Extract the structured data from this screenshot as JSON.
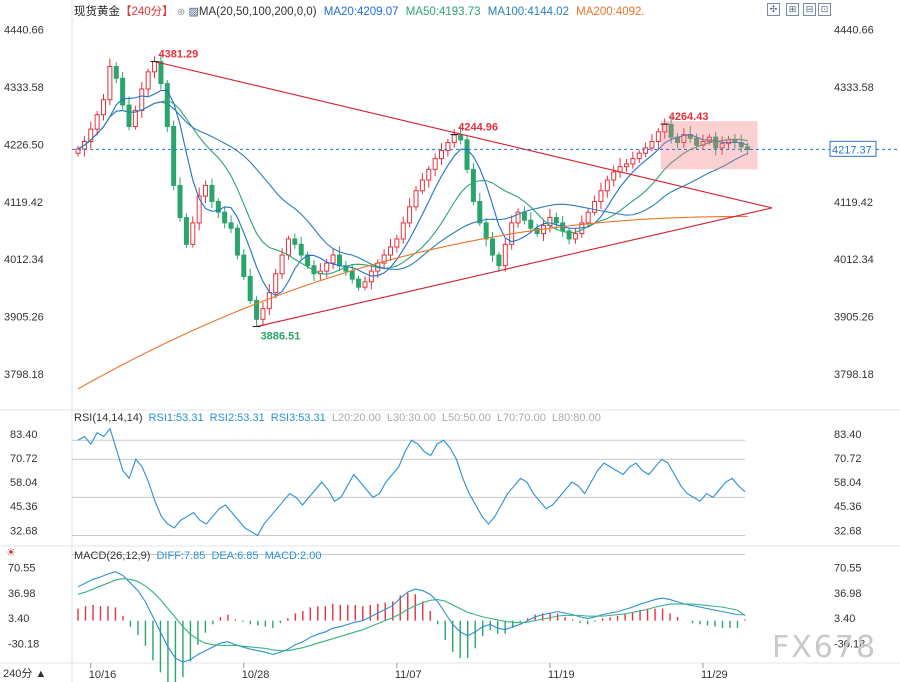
{
  "header": {
    "symbol": "现货黄金",
    "period": "【240分】",
    "ma_label": "MA(20,50,100,200,0,0)",
    "ma20": "MA20:4209.07",
    "ma50": "MA50:4193.73",
    "ma100": "MA100:4144.02",
    "ma200": "MA200:4092."
  },
  "rsi_header": {
    "label": "RSI(14,14,14)",
    "rsi1": "RSI1:53.31",
    "rsi2": "RSI2:53.31",
    "rsi3": "RSI3:53.31",
    "l20": "L20:20.00",
    "l30": "L30:30.00",
    "l50": "L50:50.00",
    "l70": "L70:70.00",
    "l80": "L80:80.00"
  },
  "macd_header": {
    "label": "MACD(26,12,9)",
    "diff": "DIFF:7.85",
    "dea": "DEA:6.85",
    "macd": "MACD:2.00"
  },
  "bottom_badge": "240分 ▲",
  "watermark": "FX678",
  "colors": {
    "up": "#e5313d",
    "down": "#2aa56b",
    "ma20": "#1f6fd1",
    "ma50": "#2fa56e",
    "ma100": "#2a80b9",
    "ma200": "#e8762a",
    "trend": "#d41c2c",
    "rsi": "#2b8fd6",
    "diff": "#2b8fd6",
    "dea": "#36b37e"
  },
  "chart_data": [
    {
      "type": "candlestick",
      "title": "现货黄金 240分",
      "x_ticks": [
        "10/16",
        "10/28",
        "11/07",
        "11/19",
        "11/29"
      ],
      "y_ticks": [
        4440.66,
        4333.58,
        4226.5,
        4119.42,
        4012.34,
        3905.26,
        3798.18
      ],
      "ylim": [
        3740,
        4470
      ],
      "current_price": 4217.37,
      "annotations": [
        {
          "label": "4381.29",
          "value": 4381.29,
          "color": "up"
        },
        {
          "label": "4244.96",
          "value": 4244.96,
          "color": "up"
        },
        {
          "label": "4264.43",
          "value": 4264.43,
          "color": "up"
        },
        {
          "label": "3886.51",
          "value": 3886.51,
          "color": "down"
        }
      ],
      "close_series": [
        4218,
        4232,
        4255,
        4282,
        4310,
        4372,
        4350,
        4300,
        4260,
        4290,
        4330,
        4362,
        4381,
        4340,
        4260,
        4150,
        4090,
        4040,
        4080,
        4130,
        4150,
        4120,
        4100,
        4080,
        4070,
        4020,
        3980,
        3935,
        3900,
        3920,
        3950,
        3985,
        4020,
        4050,
        4040,
        4020,
        4000,
        3985,
        3990,
        4005,
        4020,
        4000,
        3990,
        3975,
        3960,
        3970,
        3990,
        4005,
        4020,
        4035,
        4050,
        4080,
        4110,
        4140,
        4160,
        4180,
        4200,
        4215,
        4230,
        4244,
        4235,
        4180,
        4120,
        4080,
        4050,
        4020,
        4000,
        4040,
        4080,
        4100,
        4085,
        4070,
        4060,
        4075,
        4090,
        4080,
        4065,
        4050,
        4060,
        4080,
        4100,
        4120,
        4140,
        4160,
        4175,
        4185,
        4190,
        4200,
        4210,
        4220,
        4232,
        4250,
        4264,
        4240,
        4230,
        4245,
        4238,
        4225,
        4232,
        4240,
        4220,
        4228,
        4235,
        4230,
        4222,
        4217
      ],
      "moving_averages": [
        {
          "name": "MA20",
          "last": 4209.07
        },
        {
          "name": "MA50",
          "last": 4193.73
        },
        {
          "name": "MA100",
          "last": 4144.02
        },
        {
          "name": "MA200",
          "last": 4092
        }
      ]
    },
    {
      "type": "line",
      "title": "RSI(14,14,14)",
      "y_ticks": [
        83.4,
        70.72,
        58.04,
        45.36,
        32.68
      ],
      "ylim": [
        25,
        88
      ],
      "reference_levels": [
        80,
        70,
        50,
        30,
        20
      ],
      "series": [
        {
          "name": "RSI1",
          "last": 53.31,
          "values": [
            80,
            82,
            78,
            84,
            82,
            86,
            75,
            64,
            60,
            70,
            66,
            58,
            48,
            40,
            36,
            34,
            38,
            40,
            42,
            38,
            36,
            40,
            44,
            46,
            42,
            38,
            34,
            32,
            30,
            36,
            40,
            44,
            48,
            52,
            50,
            46,
            50,
            54,
            58,
            54,
            48,
            50,
            56,
            62,
            58,
            54,
            50,
            52,
            58,
            62,
            66,
            74,
            80,
            78,
            74,
            72,
            78,
            80,
            76,
            70,
            60,
            52,
            46,
            40,
            36,
            40,
            46,
            52,
            56,
            60,
            58,
            52,
            48,
            44,
            46,
            50,
            54,
            58,
            56,
            52,
            58,
            64,
            68,
            66,
            64,
            62,
            66,
            68,
            64,
            62,
            66,
            70,
            68,
            62,
            56,
            52,
            50,
            48,
            52,
            50,
            54,
            58,
            60,
            56,
            53
          ]
        }
      ]
    },
    {
      "type": "bar+line",
      "title": "MACD(26,12,9)",
      "y_ticks": [
        70.55,
        36.98,
        3.4,
        -30.18
      ],
      "ylim": [
        -55,
        78
      ],
      "series": [
        {
          "name": "DIFF",
          "last": 7.85,
          "values": [
            45,
            50,
            55,
            58,
            62,
            65,
            60,
            50,
            40,
            25,
            5,
            -15,
            -35,
            -50,
            -55,
            -52,
            -45,
            -40,
            -35,
            -30,
            -28,
            -32,
            -35,
            -38,
            -40,
            -42,
            -45,
            -42,
            -38,
            -32,
            -28,
            -22,
            -18,
            -15,
            -10,
            -8,
            -5,
            -2,
            0,
            5,
            10,
            15,
            20,
            30,
            38,
            42,
            40,
            35,
            25,
            10,
            -5,
            -15,
            -20,
            -15,
            -8,
            -5,
            -10,
            -12,
            -8,
            -5,
            0,
            5,
            8,
            10,
            12,
            10,
            8,
            5,
            3,
            5,
            8,
            10,
            12,
            15,
            18,
            22,
            25,
            28,
            30,
            28,
            25,
            22,
            20,
            18,
            16,
            14,
            12,
            10,
            8,
            7.85
          ]
        },
        {
          "name": "DEA",
          "last": 6.85,
          "values": [
            35,
            38,
            42,
            46,
            50,
            54,
            56,
            55,
            52,
            46,
            38,
            28,
            16,
            4,
            -8,
            -18,
            -25,
            -30,
            -32,
            -33,
            -33,
            -33,
            -34,
            -35,
            -36,
            -37,
            -39,
            -40,
            -40,
            -38,
            -36,
            -33,
            -30,
            -27,
            -24,
            -21,
            -18,
            -15,
            -12,
            -8,
            -4,
            0,
            4,
            9,
            15,
            20,
            24,
            27,
            28,
            26,
            21,
            16,
            11,
            8,
            5,
            3,
            1,
            -1,
            -2,
            -3,
            -2,
            0,
            2,
            4,
            6,
            7,
            7,
            7,
            6,
            6,
            6,
            7,
            8,
            9,
            11,
            13,
            15,
            18,
            20,
            22,
            22,
            22,
            22,
            21,
            20,
            19,
            18,
            16,
            14,
            6.85
          ]
        },
        {
          "name": "MACD",
          "last": 2.0
        }
      ]
    }
  ]
}
